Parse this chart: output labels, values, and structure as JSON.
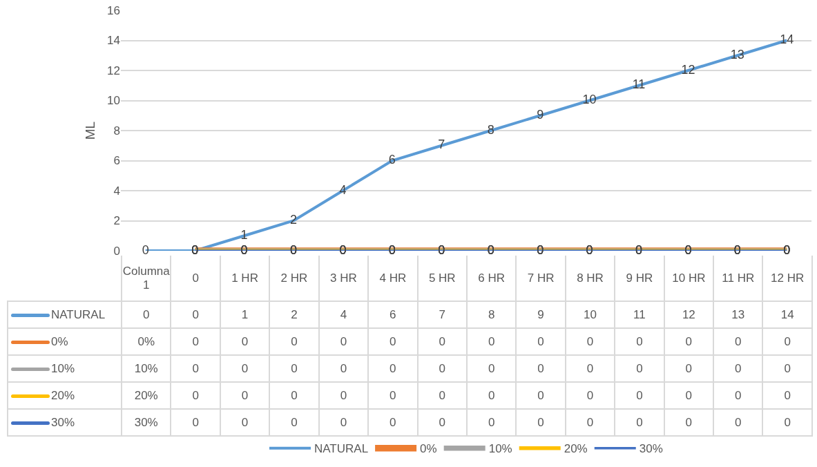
{
  "chart_data": {
    "type": "line",
    "ylabel": "ML",
    "categories": [
      "Columna1",
      "0",
      "1 HR",
      "2 HR",
      "3 HR",
      "4 HR",
      "5 HR",
      "6 HR",
      "7 HR",
      "8 HR",
      "9 HR",
      "10 HR",
      "11 HR",
      "12 HR"
    ],
    "series": [
      {
        "name": "NATURAL",
        "color": "#5b9bd5",
        "values": [
          0,
          0,
          1,
          2,
          4,
          6,
          7,
          8,
          9,
          10,
          11,
          12,
          13,
          14
        ],
        "value_labels": [
          "0",
          "0",
          "1",
          "2",
          "4",
          "6",
          "7",
          "8",
          "9",
          "10",
          "11",
          "12",
          "13",
          "14"
        ]
      },
      {
        "name": "0%",
        "color": "#ed7d31",
        "values": [
          null,
          0,
          0,
          0,
          0,
          0,
          0,
          0,
          0,
          0,
          0,
          0,
          0,
          0
        ],
        "value_labels": [
          "0%",
          "0",
          "0",
          "0",
          "0",
          "0",
          "0",
          "0",
          "0",
          "0",
          "0",
          "0",
          "0",
          "0"
        ]
      },
      {
        "name": "10%",
        "color": "#a5a5a5",
        "values": [
          null,
          0,
          0,
          0,
          0,
          0,
          0,
          0,
          0,
          0,
          0,
          0,
          0,
          0
        ],
        "value_labels": [
          "10%",
          "0",
          "0",
          "0",
          "0",
          "0",
          "0",
          "0",
          "0",
          "0",
          "0",
          "0",
          "0",
          "0"
        ]
      },
      {
        "name": "20%",
        "color": "#ffc000",
        "values": [
          null,
          0,
          0,
          0,
          0,
          0,
          0,
          0,
          0,
          0,
          0,
          0,
          0,
          0
        ],
        "value_labels": [
          "20%",
          "0",
          "0",
          "0",
          "0",
          "0",
          "0",
          "0",
          "0",
          "0",
          "0",
          "0",
          "0",
          "0"
        ]
      },
      {
        "name": "30%",
        "color": "#4472c4",
        "values": [
          null,
          0,
          0,
          0,
          0,
          0,
          0,
          0,
          0,
          0,
          0,
          0,
          0,
          0
        ],
        "value_labels": [
          "30%",
          "0",
          "0",
          "0",
          "0",
          "0",
          "0",
          "0",
          "0",
          "0",
          "0",
          "0",
          "0",
          "0"
        ]
      }
    ],
    "ylim": [
      0,
      16
    ],
    "yticks": [
      0,
      2,
      4,
      6,
      8,
      10,
      12,
      14,
      16
    ],
    "grid": "y",
    "legend": "bottom",
    "marker": "none",
    "line_style": "solid"
  }
}
